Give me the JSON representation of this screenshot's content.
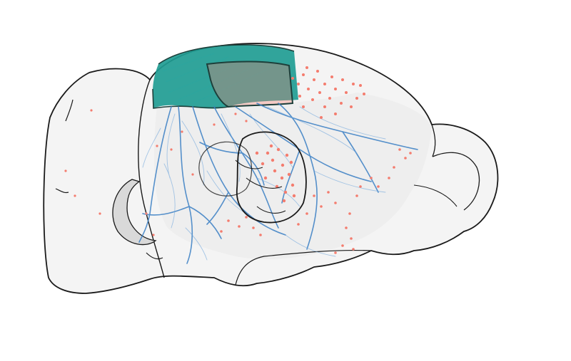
{
  "figure": {
    "background": "#ffffff",
    "colors": {
      "outline_stroke": "#1a1a1a",
      "brain_fill": "#f4f4f4",
      "inner_region_fill": "#e6e6e6",
      "ventricle_fill": "#d9d9d9",
      "axon_color": "#3a7fc4",
      "axon_light": "#6fa6dc",
      "cortex_region_fill": "#1f9c93",
      "cortex_region_outline": "#1d3f3a",
      "terminal_dots": "#f47c6e"
    },
    "layers": [
      "brain-outline-icon",
      "cortical-source-region-icon",
      "axon-projection-icon",
      "terminal-field-dots-icon",
      "thalamus-outline-icon"
    ]
  }
}
